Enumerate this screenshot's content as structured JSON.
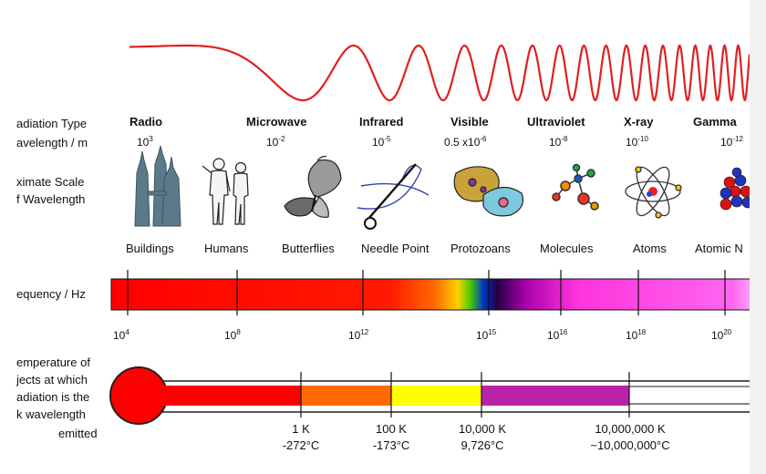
{
  "row_labels": {
    "radiation_type": "adiation Type",
    "wavelength": "avelength / m",
    "approx_scale_1": "ximate Scale",
    "approx_scale_2": "f Wavelength",
    "frequency": "equency / Hz",
    "temperature_1": "emperature of",
    "temperature_2": "jects at which",
    "temperature_3": "adiation is the",
    "temperature_4": "k wavelength",
    "temperature_5": "emitted"
  },
  "bands": [
    {
      "name": "Radio",
      "wl_base": "10",
      "wl_exp": "3"
    },
    {
      "name": "Microwave",
      "wl_base": "10",
      "wl_exp": "-2"
    },
    {
      "name": "Infrared",
      "wl_base": "10",
      "wl_exp": "-5"
    },
    {
      "name": "Visible",
      "wl_base": "0.5 x10",
      "wl_exp": "-6"
    },
    {
      "name": "Ultraviolet",
      "wl_base": "10",
      "wl_exp": "-8"
    },
    {
      "name": "X-ray",
      "wl_base": "10",
      "wl_exp": "-10"
    },
    {
      "name": "Gamma",
      "wl_base": "10",
      "wl_exp": "-12"
    }
  ],
  "scale_objects": [
    "Buildings",
    "Humans",
    "Butterflies",
    "Needle Point",
    "Protozoans",
    "Molecules",
    "Atoms",
    "Atomic N"
  ],
  "frequency_ticks": [
    {
      "base": "10",
      "exp": "4"
    },
    {
      "base": "10",
      "exp": "8"
    },
    {
      "base": "10",
      "exp": "12"
    },
    {
      "base": "10",
      "exp": "15"
    },
    {
      "base": "10",
      "exp": "16"
    },
    {
      "base": "10",
      "exp": "18"
    },
    {
      "base": "10",
      "exp": "20"
    }
  ],
  "temperatures": [
    {
      "kelvin": "1 K",
      "celsius": "-272°C"
    },
    {
      "kelvin": "100 K",
      "celsius": "-173°C"
    },
    {
      "kelvin": "10,000 K",
      "celsius": "9,726°C"
    },
    {
      "kelvin": "10,000,000 K",
      "celsius": "~10,000,000°C"
    }
  ],
  "colors": {
    "wave": "#e02020",
    "thermo_bulb": "#ff0000",
    "thermo_orange": "#ff6a00",
    "thermo_yellow": "#ffff00",
    "thermo_purple": "#bb22aa"
  }
}
